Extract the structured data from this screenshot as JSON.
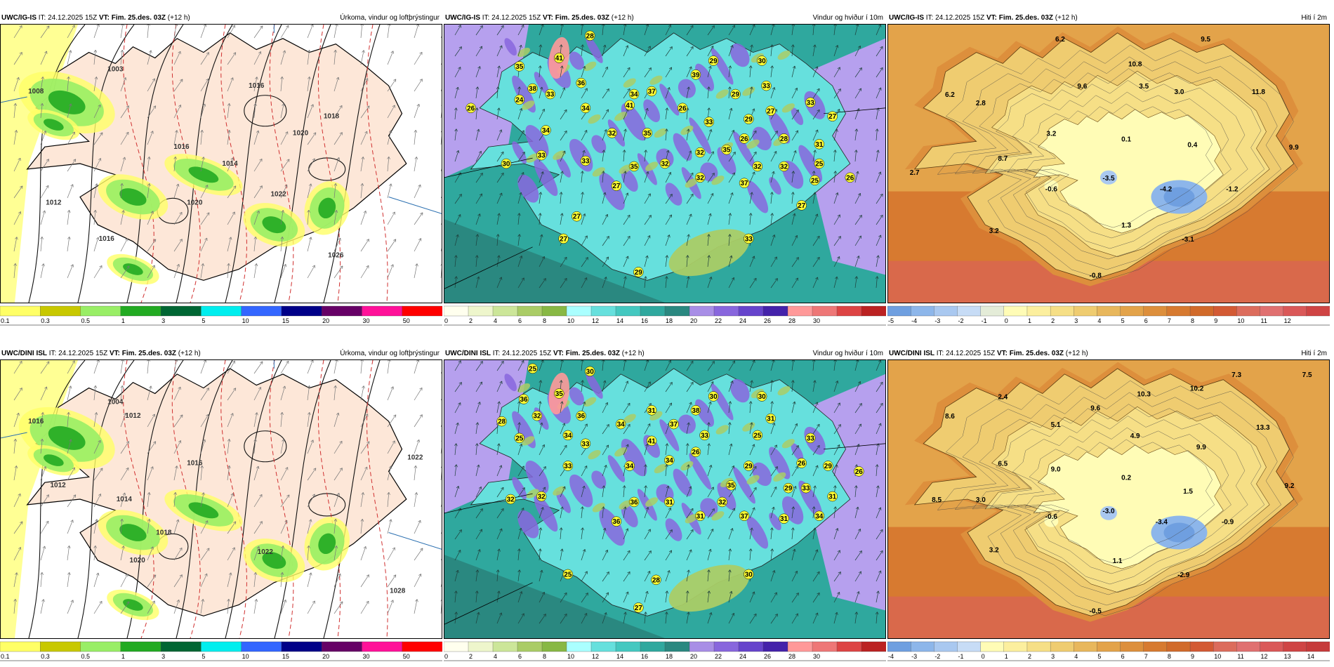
{
  "panels": [
    {
      "id": "p1",
      "model": "UWC/IG-IS",
      "it": "IT: 24.12.2025 15Z",
      "vt_label": "VT:",
      "vt": "Fim. 25.des. 03Z",
      "lead": "(+12 h)",
      "field": "Úrkoma, vindur og loftþrýstingur",
      "kind": "precip",
      "colorbar": {
        "colors": [
          "#ffff66",
          "#c8c800",
          "#99ee66",
          "#22aa22",
          "#006633",
          "#00eeee",
          "#3366ff",
          "#000088",
          "#660066",
          "#ff1199",
          "#ff0000"
        ],
        "ticks": [
          "0.1",
          "0.3",
          "0.5",
          "1",
          "3",
          "5",
          "10",
          "15",
          "20",
          "30",
          "50"
        ]
      },
      "values": [
        {
          "t": "1003",
          "x": 0.26,
          "y": 0.16
        },
        {
          "t": "1008",
          "x": 0.08,
          "y": 0.24
        },
        {
          "t": "1016",
          "x": 0.58,
          "y": 0.22
        },
        {
          "t": "1018",
          "x": 0.75,
          "y": 0.33
        },
        {
          "t": "1020",
          "x": 0.68,
          "y": 0.39
        },
        {
          "t": "1016",
          "x": 0.41,
          "y": 0.44
        },
        {
          "t": "1014",
          "x": 0.52,
          "y": 0.5
        },
        {
          "t": "1022",
          "x": 0.63,
          "y": 0.61
        },
        {
          "t": "1020",
          "x": 0.44,
          "y": 0.64
        },
        {
          "t": "1016",
          "x": 0.24,
          "y": 0.77
        },
        {
          "t": "1012",
          "x": 0.12,
          "y": 0.64
        },
        {
          "t": "1026",
          "x": 0.76,
          "y": 0.83
        }
      ]
    },
    {
      "id": "p2",
      "model": "UWC/IG-IS",
      "it": "IT: 24.12.2025 15Z",
      "vt_label": "VT:",
      "vt": "Fim. 25.des. 03Z",
      "lead": "(+12 h)",
      "field": "Vindur og hviður í 10m",
      "kind": "wind",
      "colorbar": {
        "colors": [
          "#ffffee",
          "#eef6cc",
          "#cce699",
          "#aacc66",
          "#88b844",
          "#aaffff",
          "#66e0dd",
          "#44c8c0",
          "#2fa89e",
          "#2a8880",
          "#a88ee6",
          "#8866dd",
          "#6644cc",
          "#4422aa",
          "#ff9999",
          "#ee7777",
          "#dd4444",
          "#bb2222"
        ],
        "ticks": [
          "0",
          "2",
          "4",
          "6",
          "8",
          "10",
          "12",
          "14",
          "16",
          "18",
          "20",
          "22",
          "24",
          "26",
          "28",
          "30"
        ]
      },
      "values": [
        {
          "t": "28",
          "x": 0.33,
          "y": 0.04
        },
        {
          "t": "35",
          "x": 0.17,
          "y": 0.15
        },
        {
          "t": "41",
          "x": 0.26,
          "y": 0.12
        },
        {
          "t": "26",
          "x": 0.06,
          "y": 0.3
        },
        {
          "t": "24",
          "x": 0.17,
          "y": 0.27
        },
        {
          "t": "38",
          "x": 0.2,
          "y": 0.23
        },
        {
          "t": "33",
          "x": 0.24,
          "y": 0.25
        },
        {
          "t": "36",
          "x": 0.31,
          "y": 0.21
        },
        {
          "t": "34",
          "x": 0.32,
          "y": 0.3
        },
        {
          "t": "29",
          "x": 0.61,
          "y": 0.13
        },
        {
          "t": "30",
          "x": 0.72,
          "y": 0.13
        },
        {
          "t": "39",
          "x": 0.57,
          "y": 0.18
        },
        {
          "t": "37",
          "x": 0.47,
          "y": 0.24
        },
        {
          "t": "34",
          "x": 0.43,
          "y": 0.25
        },
        {
          "t": "29",
          "x": 0.66,
          "y": 0.25
        },
        {
          "t": "33",
          "x": 0.73,
          "y": 0.22
        },
        {
          "t": "41",
          "x": 0.42,
          "y": 0.29
        },
        {
          "t": "26",
          "x": 0.54,
          "y": 0.3
        },
        {
          "t": "33",
          "x": 0.6,
          "y": 0.35
        },
        {
          "t": "29",
          "x": 0.69,
          "y": 0.34
        },
        {
          "t": "27",
          "x": 0.74,
          "y": 0.31
        },
        {
          "t": "33",
          "x": 0.83,
          "y": 0.28
        },
        {
          "t": "27",
          "x": 0.88,
          "y": 0.33
        },
        {
          "t": "34",
          "x": 0.23,
          "y": 0.38
        },
        {
          "t": "32",
          "x": 0.38,
          "y": 0.39
        },
        {
          "t": "35",
          "x": 0.46,
          "y": 0.39
        },
        {
          "t": "26",
          "x": 0.68,
          "y": 0.41
        },
        {
          "t": "28",
          "x": 0.77,
          "y": 0.41
        },
        {
          "t": "33",
          "x": 0.22,
          "y": 0.47
        },
        {
          "t": "33",
          "x": 0.32,
          "y": 0.49
        },
        {
          "t": "35",
          "x": 0.64,
          "y": 0.45
        },
        {
          "t": "31",
          "x": 0.85,
          "y": 0.43
        },
        {
          "t": "30",
          "x": 0.14,
          "y": 0.5
        },
        {
          "t": "35",
          "x": 0.43,
          "y": 0.51
        },
        {
          "t": "32",
          "x": 0.5,
          "y": 0.5
        },
        {
          "t": "32",
          "x": 0.58,
          "y": 0.46
        },
        {
          "t": "32",
          "x": 0.71,
          "y": 0.51
        },
        {
          "t": "32",
          "x": 0.77,
          "y": 0.51
        },
        {
          "t": "25",
          "x": 0.85,
          "y": 0.5
        },
        {
          "t": "32",
          "x": 0.58,
          "y": 0.55
        },
        {
          "t": "37",
          "x": 0.68,
          "y": 0.57
        },
        {
          "t": "25",
          "x": 0.84,
          "y": 0.56
        },
        {
          "t": "26",
          "x": 0.92,
          "y": 0.55
        },
        {
          "t": "27",
          "x": 0.39,
          "y": 0.58
        },
        {
          "t": "27",
          "x": 0.81,
          "y": 0.65
        },
        {
          "t": "27",
          "x": 0.3,
          "y": 0.69
        },
        {
          "t": "27",
          "x": 0.27,
          "y": 0.77
        },
        {
          "t": "33",
          "x": 0.69,
          "y": 0.77
        },
        {
          "t": "29",
          "x": 0.44,
          "y": 0.89
        }
      ]
    },
    {
      "id": "p3",
      "model": "UWC/IG-IS",
      "it": "IT: 24.12.2025 15Z",
      "vt_label": "VT:",
      "vt": "Fim. 25.des. 03Z",
      "lead": "(+12 h)",
      "field": "Hiti í 2m",
      "kind": "temp",
      "colorbar": {
        "colors": [
          "#6f9fe0",
          "#8db6ea",
          "#a9c8f0",
          "#c7dcf6",
          "#e4ecd8",
          "#fffcb6",
          "#fcef9e",
          "#f6df86",
          "#efcc70",
          "#e8b75c",
          "#e3a34a",
          "#dd8f3c",
          "#d77a30",
          "#d16a2a",
          "#d35a34",
          "#dc6c5c",
          "#e07070",
          "#da5858",
          "#cf4444"
        ],
        "ticks": [
          "-5",
          "-4",
          "-3",
          "-2",
          "-1",
          "0",
          "1",
          "2",
          "3",
          "4",
          "5",
          "6",
          "7",
          "8",
          "9",
          "10",
          "11",
          "12"
        ]
      },
      "values": [
        {
          "t": "6.2",
          "x": 0.39,
          "y": 0.05
        },
        {
          "t": "9.5",
          "x": 0.72,
          "y": 0.05
        },
        {
          "t": "10.8",
          "x": 0.56,
          "y": 0.14
        },
        {
          "t": "9.6",
          "x": 0.44,
          "y": 0.22
        },
        {
          "t": "3.5",
          "x": 0.58,
          "y": 0.22
        },
        {
          "t": "3.0",
          "x": 0.66,
          "y": 0.24
        },
        {
          "t": "11.8",
          "x": 0.84,
          "y": 0.24
        },
        {
          "t": "6.2",
          "x": 0.14,
          "y": 0.25
        },
        {
          "t": "2.8",
          "x": 0.21,
          "y": 0.28
        },
        {
          "t": "3.2",
          "x": 0.37,
          "y": 0.39
        },
        {
          "t": "0.1",
          "x": 0.54,
          "y": 0.41
        },
        {
          "t": "0.4",
          "x": 0.69,
          "y": 0.43
        },
        {
          "t": "9.9",
          "x": 0.92,
          "y": 0.44
        },
        {
          "t": "8.7",
          "x": 0.26,
          "y": 0.48
        },
        {
          "t": "2.7",
          "x": 0.06,
          "y": 0.53
        },
        {
          "t": "-0.6",
          "x": 0.37,
          "y": 0.59
        },
        {
          "t": "-3.5",
          "x": 0.5,
          "y": 0.55
        },
        {
          "t": "-4.2",
          "x": 0.63,
          "y": 0.59
        },
        {
          "t": "-1.2",
          "x": 0.78,
          "y": 0.59
        },
        {
          "t": "1.3",
          "x": 0.54,
          "y": 0.72
        },
        {
          "t": "3.2",
          "x": 0.24,
          "y": 0.74
        },
        {
          "t": "-3.1",
          "x": 0.68,
          "y": 0.77
        },
        {
          "t": "-0.8",
          "x": 0.47,
          "y": 0.9
        }
      ]
    },
    {
      "id": "p4",
      "model": "UWC/DINI ISL",
      "it": "IT: 24.12.2025 15Z",
      "vt_label": "VT:",
      "vt": "Fim. 25.des. 03Z",
      "lead": "(+12 h)",
      "field": "Úrkoma, vindur og loftþrýstingur",
      "kind": "precip",
      "colorbar": {
        "colors": [
          "#ffff66",
          "#c8c800",
          "#99ee66",
          "#22aa22",
          "#006633",
          "#00eeee",
          "#3366ff",
          "#000088",
          "#660066",
          "#ff1199",
          "#ff0000"
        ],
        "ticks": [
          "0.1",
          "0.3",
          "0.5",
          "1",
          "3",
          "5",
          "10",
          "15",
          "20",
          "30",
          "50"
        ]
      },
      "values": [
        {
          "t": "1004",
          "x": 0.26,
          "y": 0.15
        },
        {
          "t": "1016",
          "x": 0.08,
          "y": 0.22
        },
        {
          "t": "1012",
          "x": 0.3,
          "y": 0.2
        },
        {
          "t": "1016",
          "x": 0.44,
          "y": 0.37
        },
        {
          "t": "1012",
          "x": 0.13,
          "y": 0.45
        },
        {
          "t": "1014",
          "x": 0.28,
          "y": 0.5
        },
        {
          "t": "1018",
          "x": 0.37,
          "y": 0.62
        },
        {
          "t": "1020",
          "x": 0.31,
          "y": 0.72
        },
        {
          "t": "1022",
          "x": 0.6,
          "y": 0.69
        },
        {
          "t": "1028",
          "x": 0.9,
          "y": 0.83
        },
        {
          "t": "1022",
          "x": 0.94,
          "y": 0.35
        }
      ]
    },
    {
      "id": "p5",
      "model": "UWC/DINI ISL",
      "it": "IT: 24.12.2025 15Z",
      "vt_label": "VT:",
      "vt": "Fim. 25.des. 03Z",
      "lead": "(+12 h)",
      "field": "Vindur og hviður í 10m",
      "kind": "wind",
      "colorbar": {
        "colors": [
          "#ffffee",
          "#eef6cc",
          "#cce699",
          "#aacc66",
          "#88b844",
          "#aaffff",
          "#66e0dd",
          "#44c8c0",
          "#2fa89e",
          "#2a8880",
          "#a88ee6",
          "#8866dd",
          "#6644cc",
          "#4422aa",
          "#ff9999",
          "#ee7777",
          "#dd4444",
          "#bb2222"
        ],
        "ticks": [
          "0",
          "2",
          "4",
          "6",
          "8",
          "10",
          "12",
          "14",
          "16",
          "18",
          "20",
          "22",
          "24",
          "26",
          "28",
          "30"
        ]
      },
      "values": [
        {
          "t": "25",
          "x": 0.2,
          "y": 0.03
        },
        {
          "t": "30",
          "x": 0.33,
          "y": 0.04
        },
        {
          "t": "36",
          "x": 0.18,
          "y": 0.14
        },
        {
          "t": "35",
          "x": 0.26,
          "y": 0.12
        },
        {
          "t": "30",
          "x": 0.61,
          "y": 0.13
        },
        {
          "t": "30",
          "x": 0.72,
          "y": 0.13
        },
        {
          "t": "28",
          "x": 0.13,
          "y": 0.22
        },
        {
          "t": "32",
          "x": 0.21,
          "y": 0.2
        },
        {
          "t": "36",
          "x": 0.31,
          "y": 0.2
        },
        {
          "t": "31",
          "x": 0.47,
          "y": 0.18
        },
        {
          "t": "38",
          "x": 0.57,
          "y": 0.18
        },
        {
          "t": "31",
          "x": 0.74,
          "y": 0.21
        },
        {
          "t": "25",
          "x": 0.17,
          "y": 0.28
        },
        {
          "t": "34",
          "x": 0.28,
          "y": 0.27
        },
        {
          "t": "34",
          "x": 0.4,
          "y": 0.23
        },
        {
          "t": "37",
          "x": 0.52,
          "y": 0.23
        },
        {
          "t": "33",
          "x": 0.59,
          "y": 0.27
        },
        {
          "t": "25",
          "x": 0.71,
          "y": 0.27
        },
        {
          "t": "33",
          "x": 0.83,
          "y": 0.28
        },
        {
          "t": "33",
          "x": 0.32,
          "y": 0.3
        },
        {
          "t": "41",
          "x": 0.47,
          "y": 0.29
        },
        {
          "t": "26",
          "x": 0.57,
          "y": 0.33
        },
        {
          "t": "29",
          "x": 0.69,
          "y": 0.38
        },
        {
          "t": "26",
          "x": 0.81,
          "y": 0.37
        },
        {
          "t": "33",
          "x": 0.28,
          "y": 0.38
        },
        {
          "t": "34",
          "x": 0.42,
          "y": 0.38
        },
        {
          "t": "34",
          "x": 0.51,
          "y": 0.36
        },
        {
          "t": "35",
          "x": 0.65,
          "y": 0.45
        },
        {
          "t": "29",
          "x": 0.78,
          "y": 0.46
        },
        {
          "t": "33",
          "x": 0.82,
          "y": 0.46
        },
        {
          "t": "29",
          "x": 0.87,
          "y": 0.38
        },
        {
          "t": "26",
          "x": 0.94,
          "y": 0.4
        },
        {
          "t": "32",
          "x": 0.15,
          "y": 0.5
        },
        {
          "t": "32",
          "x": 0.22,
          "y": 0.49
        },
        {
          "t": "36",
          "x": 0.43,
          "y": 0.51
        },
        {
          "t": "31",
          "x": 0.51,
          "y": 0.51
        },
        {
          "t": "32",
          "x": 0.63,
          "y": 0.51
        },
        {
          "t": "31",
          "x": 0.88,
          "y": 0.49
        },
        {
          "t": "36",
          "x": 0.39,
          "y": 0.58
        },
        {
          "t": "31",
          "x": 0.58,
          "y": 0.56
        },
        {
          "t": "37",
          "x": 0.68,
          "y": 0.56
        },
        {
          "t": "31",
          "x": 0.77,
          "y": 0.57
        },
        {
          "t": "34",
          "x": 0.85,
          "y": 0.56
        },
        {
          "t": "25",
          "x": 0.28,
          "y": 0.77
        },
        {
          "t": "28",
          "x": 0.48,
          "y": 0.79
        },
        {
          "t": "27",
          "x": 0.44,
          "y": 0.89
        },
        {
          "t": "30",
          "x": 0.69,
          "y": 0.77
        }
      ]
    },
    {
      "id": "p6",
      "model": "UWC/DINI ISL",
      "it": "IT: 24.12.2025 15Z",
      "vt_label": "VT:",
      "vt": "Fim. 25.des. 03Z",
      "lead": "(+12 h)",
      "field": "Hiti í 2m",
      "kind": "temp",
      "colorbar": {
        "colors": [
          "#6f9fe0",
          "#8db6ea",
          "#a9c8f0",
          "#c7dcf6",
          "#fffcb6",
          "#fcef9e",
          "#f6df86",
          "#efcc70",
          "#e8b75c",
          "#e3a34a",
          "#dd8f3c",
          "#d77a30",
          "#d16a2a",
          "#d35a34",
          "#dc6c5c",
          "#e07070",
          "#da5858",
          "#cf4444",
          "#c63a3a"
        ],
        "ticks": [
          "-4",
          "-3",
          "-2",
          "-1",
          "0",
          "1",
          "2",
          "3",
          "4",
          "5",
          "6",
          "7",
          "8",
          "9",
          "10",
          "11",
          "12",
          "13",
          "14"
        ]
      },
      "values": [
        {
          "t": "7.3",
          "x": 0.79,
          "y": 0.05
        },
        {
          "t": "7.5",
          "x": 0.95,
          "y": 0.05
        },
        {
          "t": "2.4",
          "x": 0.26,
          "y": 0.13
        },
        {
          "t": "10.3",
          "x": 0.58,
          "y": 0.12
        },
        {
          "t": "10.2",
          "x": 0.7,
          "y": 0.1
        },
        {
          "t": "8.6",
          "x": 0.14,
          "y": 0.2
        },
        {
          "t": "5.1",
          "x": 0.38,
          "y": 0.23
        },
        {
          "t": "9.6",
          "x": 0.47,
          "y": 0.17
        },
        {
          "t": "4.9",
          "x": 0.56,
          "y": 0.27
        },
        {
          "t": "13.3",
          "x": 0.85,
          "y": 0.24
        },
        {
          "t": "9.9",
          "x": 0.71,
          "y": 0.31
        },
        {
          "t": "6.5",
          "x": 0.26,
          "y": 0.37
        },
        {
          "t": "9.0",
          "x": 0.38,
          "y": 0.39
        },
        {
          "t": "0.2",
          "x": 0.54,
          "y": 0.42
        },
        {
          "t": "1.5",
          "x": 0.68,
          "y": 0.47
        },
        {
          "t": "9.2",
          "x": 0.91,
          "y": 0.45
        },
        {
          "t": "8.5",
          "x": 0.11,
          "y": 0.5
        },
        {
          "t": "3.0",
          "x": 0.21,
          "y": 0.5
        },
        {
          "t": "-0.6",
          "x": 0.37,
          "y": 0.56
        },
        {
          "t": "-3.0",
          "x": 0.5,
          "y": 0.54
        },
        {
          "t": "-3.4",
          "x": 0.62,
          "y": 0.58
        },
        {
          "t": "-0.9",
          "x": 0.77,
          "y": 0.58
        },
        {
          "t": "3.2",
          "x": 0.24,
          "y": 0.68
        },
        {
          "t": "1.1",
          "x": 0.52,
          "y": 0.72
        },
        {
          "t": "-2.9",
          "x": 0.67,
          "y": 0.77
        },
        {
          "t": "-0.5",
          "x": 0.47,
          "y": 0.9
        }
      ]
    }
  ]
}
